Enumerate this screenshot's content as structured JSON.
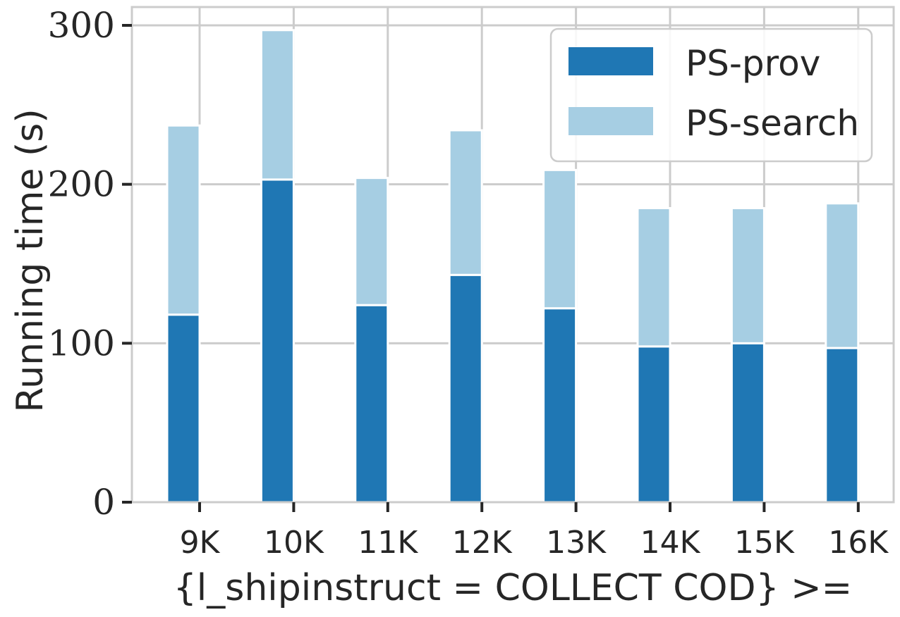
{
  "chart_data": {
    "type": "bar",
    "stacked": true,
    "categories": [
      "9K",
      "10K",
      "11K",
      "12K",
      "13K",
      "14K",
      "15K",
      "16K"
    ],
    "series": [
      {
        "name": "PS-prov",
        "color": "#1f77b4",
        "values": [
          118,
          203,
          124,
          143,
          122,
          98,
          100,
          97
        ]
      },
      {
        "name": "PS-search",
        "color": "#a6cee3",
        "values": [
          119,
          94,
          80,
          91,
          87,
          87,
          85,
          91
        ]
      }
    ],
    "xlabel": "{l_shipinstruct = COLLECT COD} >=",
    "ylabel": "Running time (s)",
    "ylim": [
      0,
      300
    ],
    "yticks": [
      0,
      100,
      200,
      300
    ],
    "grid": true,
    "legend_position": "top-right"
  }
}
